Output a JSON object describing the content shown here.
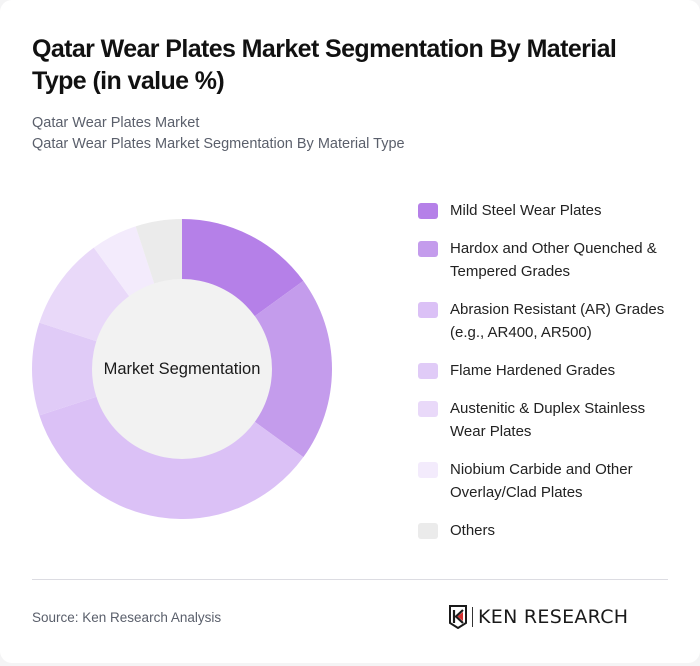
{
  "header": {
    "title": "Qatar Wear Plates Market Segmentation By Material Type (in value %)",
    "subtitle_line1": "Qatar Wear Plates Market",
    "subtitle_line2": "Qatar Wear Plates Market Segmentation By Material Type"
  },
  "chart": {
    "center_label": "Market Segmentation"
  },
  "legend": [
    {
      "label": "Mild Steel Wear Plates",
      "color": "#B580E8"
    },
    {
      "label": "Hardox and Other Quenched & Tempered Grades",
      "color": "#C49CEC"
    },
    {
      "label": "Abrasion Resistant (AR) Grades (e.g., AR400, AR500)",
      "color": "#DBC1F6"
    },
    {
      "label": "Flame Hardened Grades",
      "color": "#E0CBF7"
    },
    {
      "label": "Austenitic & Duplex Stainless Wear Plates",
      "color": "#E9D9F9"
    },
    {
      "label": "Niobium Carbide and Other Overlay/Clad Plates",
      "color": "#F3EBFC"
    },
    {
      "label": "Others",
      "color": "#EBEBEB"
    }
  ],
  "footer": {
    "source": "Source: Ken Research Analysis",
    "logo_text": "KEN RESEARCH"
  },
  "chart_data": {
    "type": "pie",
    "title": "Qatar Wear Plates Market Segmentation By Material Type (in value %)",
    "subtitle": "Qatar Wear Plates Market Segmentation By Material Type",
    "center_label": "Market Segmentation",
    "donut": true,
    "categories": [
      "Mild Steel Wear Plates",
      "Hardox and Other Quenched & Tempered Grades",
      "Abrasion Resistant (AR) Grades (e.g., AR400, AR500)",
      "Flame Hardened Grades",
      "Austenitic & Duplex Stainless Wear Plates",
      "Niobium Carbide and Other Overlay/Clad Plates",
      "Others"
    ],
    "values": [
      15,
      20,
      35,
      10,
      10,
      5,
      5
    ],
    "colors": [
      "#B580E8",
      "#C49CEC",
      "#DBC1F6",
      "#E0CBF7",
      "#E9D9F9",
      "#F3EBFC",
      "#EBEBEB"
    ],
    "legend_position": "right",
    "start_angle": "top, clockwise",
    "source": "Source: Ken Research Analysis"
  }
}
